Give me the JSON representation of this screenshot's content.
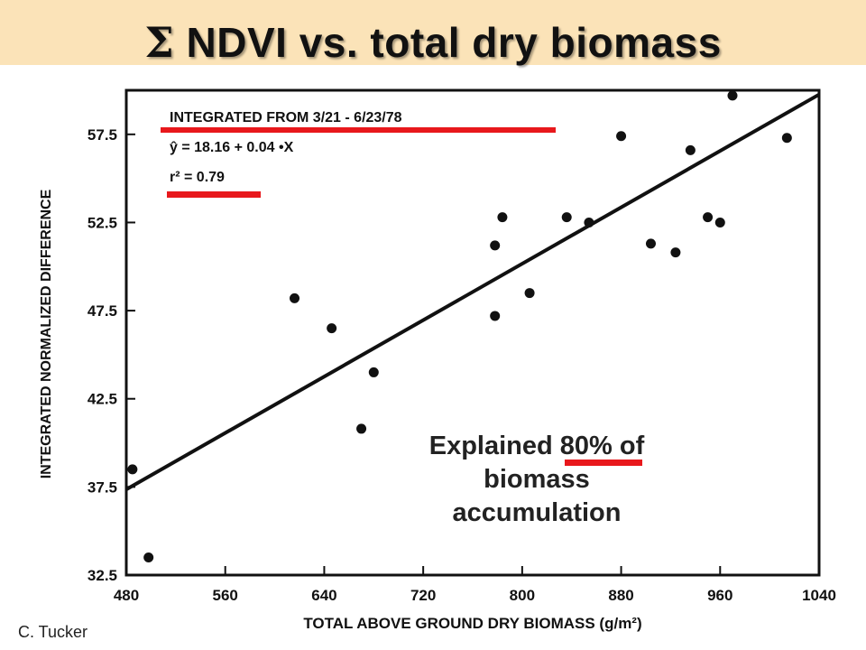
{
  "slide": {
    "title_symbol": "Σ",
    "title_text": "NDVI vs. total dry biomass",
    "credit": "C. Tucker",
    "annotation_line1_pre": "Explained ",
    "annotation_highlight": "80%",
    "annotation_line1_post": " of",
    "annotation_line2": "biomass",
    "annotation_line3": "accumulation",
    "highlight_color": "#e8181c",
    "title_band_color": "#fbe3b8"
  },
  "chart_data": {
    "type": "scatter",
    "xlabel": "TOTAL ABOVE GROUND DRY BIOMASS (g/m²)",
    "ylabel": "INTEGRATED NORMALIZED DIFFERENCE",
    "xlim": [
      480,
      1040
    ],
    "ylim": [
      32.5,
      60
    ],
    "xticks": [
      "480",
      "560",
      "640",
      "720",
      "800",
      "880",
      "960",
      "1040"
    ],
    "yticks": [
      "32.5",
      "37.5",
      "42.5",
      "47.5",
      "52.5",
      "57.5"
    ],
    "legend_line1": "INTEGRATED FROM 3/21 - 6/23/78",
    "legend_line2": "ŷ = 18.16 + 0.04 •X",
    "legend_line3": "r² = 0.79",
    "regression": {
      "intercept": 18.16,
      "slope": 0.04,
      "r2": 0.79
    },
    "grid": false,
    "points": [
      {
        "x": 485,
        "y": 38.5
      },
      {
        "x": 498,
        "y": 33.5
      },
      {
        "x": 616,
        "y": 48.2
      },
      {
        "x": 646,
        "y": 46.5
      },
      {
        "x": 670,
        "y": 40.8
      },
      {
        "x": 680,
        "y": 44.0
      },
      {
        "x": 778,
        "y": 47.2
      },
      {
        "x": 778,
        "y": 51.2
      },
      {
        "x": 784,
        "y": 52.8
      },
      {
        "x": 806,
        "y": 48.5
      },
      {
        "x": 836,
        "y": 52.8
      },
      {
        "x": 854,
        "y": 52.5
      },
      {
        "x": 880,
        "y": 57.4
      },
      {
        "x": 904,
        "y": 51.3
      },
      {
        "x": 924,
        "y": 50.8
      },
      {
        "x": 936,
        "y": 56.6
      },
      {
        "x": 950,
        "y": 52.8
      },
      {
        "x": 960,
        "y": 52.5
      },
      {
        "x": 970,
        "y": 59.7
      },
      {
        "x": 1014,
        "y": 57.3
      }
    ]
  }
}
